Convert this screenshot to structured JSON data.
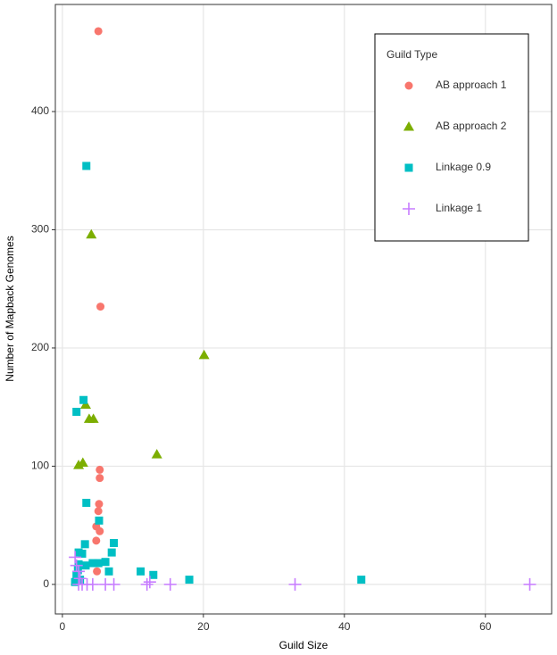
{
  "chart_data": {
    "type": "scatter",
    "xlabel": "Guild Size",
    "ylabel": "Number of Mapback Genomes",
    "legend_title": "Guild Type",
    "legend": "top-right",
    "grid": true,
    "xlim": [
      -1,
      69.4
    ],
    "ylim": [
      -25,
      490.6
    ],
    "xticks": [
      0,
      20,
      40,
      60
    ],
    "yticks": [
      0,
      100,
      200,
      300,
      400
    ],
    "series": [
      {
        "name": "AB approach 1",
        "color": "#F8766D",
        "marker": "circle",
        "x": [
          5.1,
          5.4,
          5.3,
          5.3,
          5.2,
          5.1,
          4.8,
          5.3,
          4.8,
          4.9
        ],
        "y": [
          468,
          235,
          97,
          90,
          68,
          62,
          49,
          45,
          37,
          11
        ]
      },
      {
        "name": "AB approach 2",
        "color": "#7CAE00",
        "marker": "triangle",
        "x": [
          4.1,
          3.3,
          3.8,
          4.4,
          2.3,
          2.9,
          13.4,
          20.1
        ],
        "y": [
          296,
          152,
          140,
          140,
          101,
          103,
          110,
          194
        ]
      },
      {
        "name": "Linkage 0.9",
        "color": "#00BFC4",
        "marker": "square",
        "x": [
          3.4,
          3.0,
          2.0,
          3.4,
          5.2,
          7.3,
          3.2,
          2.3,
          2.8,
          7.0,
          6.1,
          4.3,
          5.1,
          2.3,
          3.3,
          6.6,
          11.1,
          12.9,
          18.0,
          42.4,
          2.0,
          2.5,
          1.8,
          2.2
        ],
        "y": [
          354,
          156,
          146,
          69,
          54,
          35,
          34,
          27,
          26,
          27,
          19,
          18,
          18,
          17,
          16,
          11,
          11,
          8,
          4,
          4,
          8,
          4,
          2,
          12
        ]
      },
      {
        "name": "Linkage 1",
        "color": "#C77CFF",
        "marker": "plus",
        "x": [
          2.0,
          2.3,
          2.5,
          2.8,
          3.5,
          4.3,
          6.1,
          7.3,
          12.0,
          12.4,
          15.3,
          33.0,
          66.3,
          2.3,
          1.8
        ],
        "y": [
          16,
          11,
          5,
          0,
          0,
          0,
          0,
          0,
          0,
          2,
          0,
          0,
          0,
          0,
          23
        ]
      }
    ]
  }
}
